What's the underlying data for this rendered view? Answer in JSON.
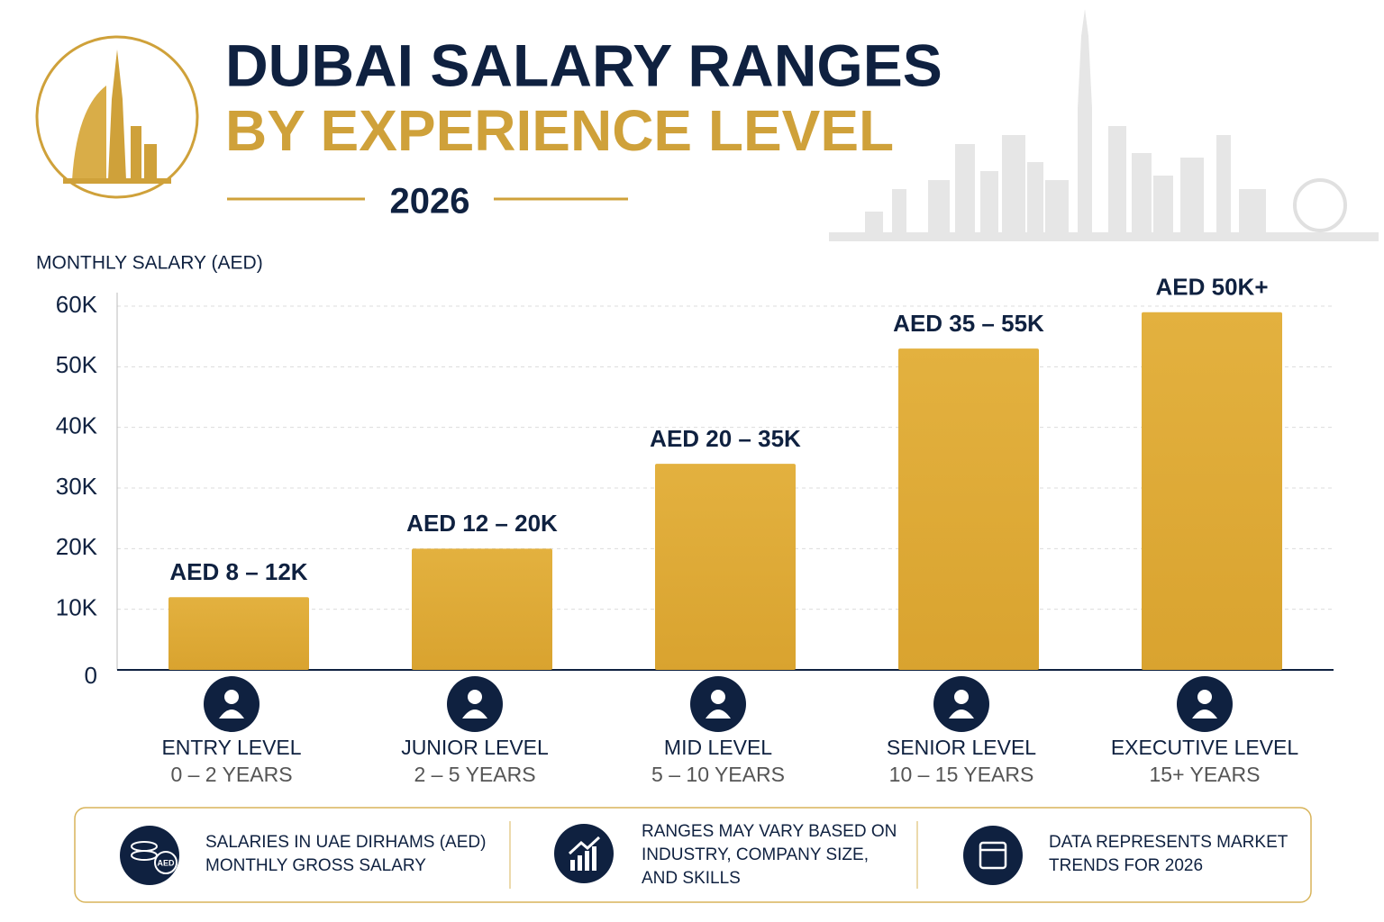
{
  "header": {
    "title_line1": "DUBAI SALARY RANGES",
    "title_line2": "BY EXPERIENCE LEVEL",
    "year": "2026"
  },
  "chart_data": {
    "type": "bar",
    "y_label": "MONTHLY SALARY (AED)",
    "categories": [
      "ENTRY LEVEL",
      "JUNIOR LEVEL",
      "MID LEVEL",
      "SENIOR LEVEL",
      "EXECUTIVE LEVEL"
    ],
    "experience": [
      "0 – 2 YEARS",
      "2 – 5 YEARS",
      "5 – 10 YEARS",
      "10 – 15 YEARS",
      "15+ YEARS"
    ],
    "values": [
      12000,
      20000,
      34000,
      53000,
      59000
    ],
    "range_labels": [
      "AED 8 – 12K",
      "AED 12 – 20K",
      "AED 20 – 35K",
      "AED 35 – 55K",
      "AED 50K+"
    ],
    "color": "#e0ac3a",
    "ylim": [
      0,
      60000
    ],
    "yticks": [
      0,
      {
        "value": 10000,
        "label": "10K"
      },
      {
        "value": 20000,
        "label": "20K"
      },
      {
        "value": 30000,
        "label": "30K"
      },
      {
        "value": 40000,
        "label": "40K"
      },
      {
        "value": 50000,
        "label": "50K"
      },
      {
        "value": 60000,
        "label": "60K"
      }
    ],
    "grid": true
  },
  "footer": {
    "notes": [
      [
        "SALARIES IN UAE DIRHAMS (AED)",
        "MONTHLY GROSS SALARY"
      ],
      [
        "RANGES MAY VARY BASED ON",
        "INDUSTRY, COMPANY SIZE,",
        "AND SKILLS"
      ],
      [
        "DATA REPRESENTS MARKET",
        "TRENDS FOR 2026"
      ]
    ],
    "icon_label": "AED"
  }
}
